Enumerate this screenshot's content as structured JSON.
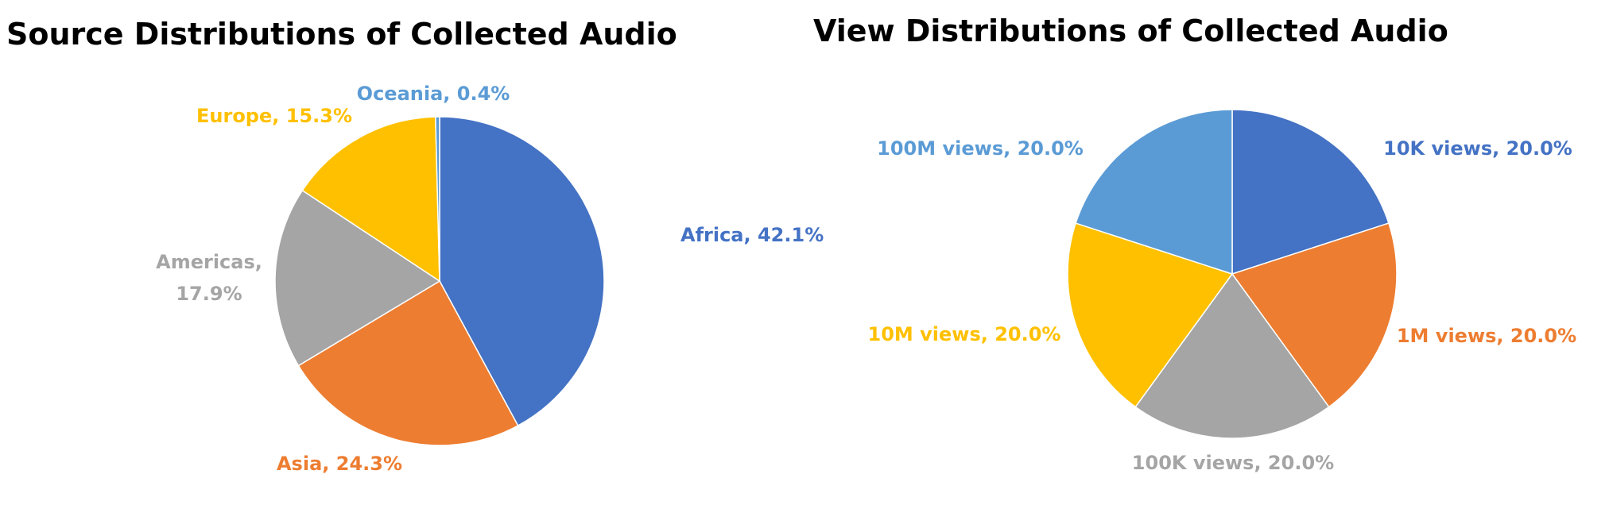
{
  "chart_data": [
    {
      "type": "pie",
      "title": "Source Distributions of Collected Audio",
      "values": [
        42.1,
        24.3,
        17.9,
        15.3,
        0.4
      ],
      "value_labels": [
        "Africa, 42.1%",
        "Asia, 24.3%",
        "Americas, 17.9%",
        "Europe, 15.3%",
        "Oceania, 0.4%"
      ],
      "colors": [
        "#4472c4",
        "#ed7d31",
        "#a5a5a5",
        "#ffc000",
        "#5b9bd5"
      ]
    },
    {
      "type": "pie",
      "title": "View Distributions of Collected Audio",
      "values": [
        20.0,
        20.0,
        20.0,
        20.0,
        20.0
      ],
      "value_labels": [
        "10K views, 20.0%",
        "1M views, 20.0%",
        "100K views, 20.0%",
        "10M views, 20.0%",
        "100M views, 20.0%"
      ],
      "colors": [
        "#4472c4",
        "#ed7d31",
        "#a5a5a5",
        "#ffc000",
        "#5b9bd5"
      ]
    }
  ]
}
